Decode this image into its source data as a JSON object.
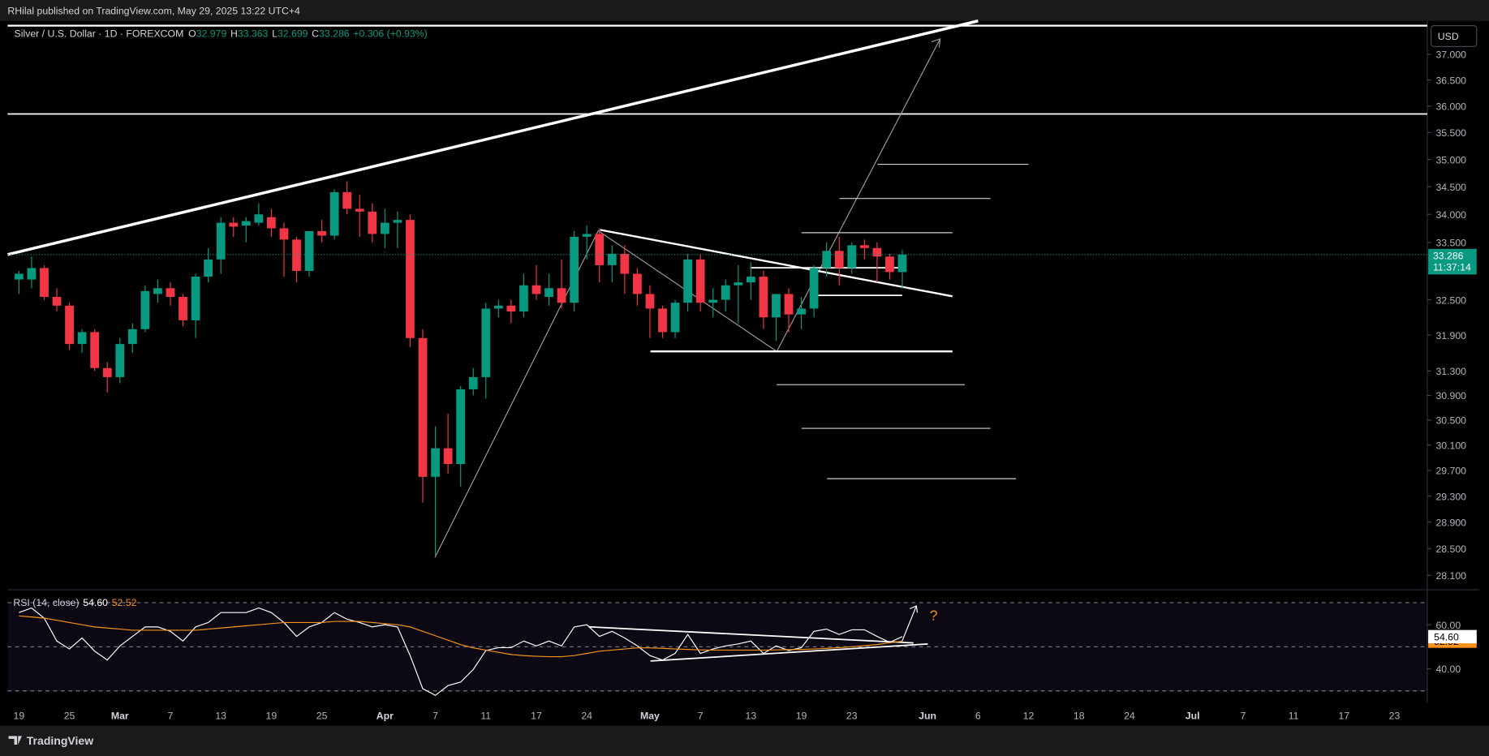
{
  "publisher_line": "RHilal published on TradingView.com, May 29, 2025 13:22 UTC+4",
  "brand": "TradingView",
  "currency": "USD",
  "countdown": "11:37:14",
  "ohlc_letters": [
    "O",
    "H",
    "L",
    "C"
  ],
  "change": "+0.306 (+0.93%)",
  "chart_data": [
    {
      "type": "candlestick",
      "title": "Silver / U.S. Dollar · 1D · FOREXCOM",
      "log": true,
      "ylim": [
        27.9,
        37.6
      ],
      "yticks": [
        {
          "value": 37,
          "label": "37.000"
        },
        {
          "value": 36.5,
          "label": "36.500"
        },
        {
          "value": 36,
          "label": "36.000"
        },
        {
          "value": 35.5,
          "label": "35.500"
        },
        {
          "value": 35,
          "label": "35.000"
        },
        {
          "value": 34.5,
          "label": "34.500"
        },
        {
          "value": 34,
          "label": "34.000"
        },
        {
          "value": 33.5,
          "label": "33.500"
        },
        {
          "value": 32.5,
          "label": "32.500"
        },
        {
          "value": 31.9,
          "label": "31.900"
        },
        {
          "value": 31.3,
          "label": "31.300"
        },
        {
          "value": 30.9,
          "label": "30.900"
        },
        {
          "value": 30.5,
          "label": "30.500"
        },
        {
          "value": 30.1,
          "label": "30.100"
        },
        {
          "value": 29.7,
          "label": "29.700"
        },
        {
          "value": 29.3,
          "label": "29.300"
        },
        {
          "value": 28.9,
          "label": "28.900"
        },
        {
          "value": 28.5,
          "label": "28.500"
        },
        {
          "value": 28.1,
          "label": "28.100"
        }
      ],
      "xlim": [
        -0.9,
        111.6
      ],
      "xticks": [
        {
          "value": 0,
          "label": "19"
        },
        {
          "value": 4,
          "label": "25"
        },
        {
          "value": 8,
          "label": "Mar"
        },
        {
          "value": 12,
          "label": "7"
        },
        {
          "value": 16,
          "label": "13"
        },
        {
          "value": 20,
          "label": "19"
        },
        {
          "value": 24,
          "label": "25"
        },
        {
          "value": 29,
          "label": "Apr"
        },
        {
          "value": 33,
          "label": "7"
        },
        {
          "value": 37,
          "label": "11"
        },
        {
          "value": 41,
          "label": "17"
        },
        {
          "value": 45,
          "label": "24"
        },
        {
          "value": 50,
          "label": "May"
        },
        {
          "value": 54,
          "label": "7"
        },
        {
          "value": 58,
          "label": "13"
        },
        {
          "value": 62,
          "label": "19"
        },
        {
          "value": 66,
          "label": "23"
        },
        {
          "value": 72,
          "label": "Jun"
        },
        {
          "value": 76,
          "label": "6"
        },
        {
          "value": 80,
          "label": "12"
        },
        {
          "value": 84,
          "label": "18"
        },
        {
          "value": 88,
          "label": "24"
        },
        {
          "value": 93,
          "label": "Jul"
        },
        {
          "value": 97,
          "label": "7"
        },
        {
          "value": 101,
          "label": "11"
        },
        {
          "value": 105,
          "label": "17"
        },
        {
          "value": 109,
          "label": "23"
        }
      ],
      "up_color": "#089981",
      "down_color": "#f23645",
      "series": [
        {
          "name": "Silver / U.S. Dollar · 1D · FOREXCOM",
          "open": [
            32.85,
            32.85,
            33.05,
            32.55,
            32.4,
            31.75,
            31.95,
            31.35,
            31.2,
            31.75,
            32.0,
            32.6,
            32.7,
            32.55,
            32.15,
            32.9,
            33.2,
            33.85,
            33.8,
            33.85,
            33.95,
            33.75,
            33.55,
            33.0,
            33.7,
            33.62,
            34.4,
            34.1,
            34.05,
            33.65,
            33.85,
            33.9,
            31.85,
            29.6,
            30.05,
            29.8,
            31.0,
            31.2,
            32.35,
            32.4,
            32.3,
            32.75,
            32.55,
            32.7,
            32.45,
            33.6,
            33.65,
            33.1,
            33.3,
            32.95,
            32.6,
            32.35,
            31.95,
            32.45,
            33.2,
            32.45,
            32.5,
            32.75,
            32.8,
            32.9,
            32.2,
            32.6,
            32.25,
            32.35,
            33.05,
            33.35,
            33.05,
            33.45,
            33.4,
            33.25,
            32.979
          ],
          "high": [
            33.0,
            33.25,
            33.1,
            32.7,
            32.45,
            32.0,
            32.0,
            31.45,
            31.85,
            32.1,
            32.75,
            32.85,
            32.8,
            32.6,
            32.95,
            33.4,
            33.95,
            33.95,
            33.95,
            34.2,
            34.1,
            33.85,
            33.6,
            33.7,
            33.9,
            34.45,
            34.6,
            34.35,
            34.2,
            34.1,
            34.05,
            34.0,
            32.0,
            30.4,
            30.6,
            31.05,
            31.35,
            32.45,
            32.5,
            32.5,
            32.95,
            33.1,
            32.95,
            33.2,
            33.7,
            33.8,
            33.75,
            33.45,
            33.45,
            33.05,
            32.75,
            32.4,
            32.5,
            33.3,
            33.3,
            32.7,
            32.85,
            33.1,
            33.15,
            33.0,
            32.6,
            32.7,
            32.55,
            33.1,
            33.5,
            33.6,
            33.5,
            33.55,
            33.5,
            33.3,
            33.363
          ],
          "low": [
            32.6,
            32.7,
            32.5,
            32.3,
            31.65,
            31.6,
            31.3,
            30.95,
            31.1,
            31.6,
            31.95,
            32.45,
            32.4,
            32.05,
            31.85,
            32.8,
            32.95,
            33.6,
            33.5,
            33.8,
            33.6,
            32.9,
            32.8,
            32.9,
            33.5,
            33.55,
            34.0,
            33.6,
            33.5,
            33.4,
            33.4,
            31.7,
            29.2,
            28.4,
            29.65,
            29.45,
            30.9,
            30.85,
            32.2,
            32.1,
            32.2,
            32.5,
            32.4,
            32.35,
            32.3,
            33.2,
            32.8,
            32.8,
            32.6,
            32.4,
            31.85,
            31.85,
            31.85,
            32.3,
            32.3,
            32.2,
            32.3,
            32.1,
            32.5,
            32.0,
            31.8,
            31.95,
            32.0,
            32.2,
            32.9,
            32.75,
            32.95,
            33.2,
            32.8,
            32.85,
            32.699
          ],
          "close": [
            32.95,
            33.05,
            32.55,
            32.4,
            31.75,
            31.95,
            31.35,
            31.2,
            31.75,
            32.0,
            32.65,
            32.7,
            32.55,
            32.15,
            32.9,
            33.2,
            33.85,
            33.78,
            33.88,
            34.0,
            33.75,
            33.55,
            33.0,
            33.7,
            33.62,
            34.4,
            34.1,
            34.05,
            33.65,
            33.85,
            33.9,
            31.85,
            29.6,
            30.05,
            29.8,
            31.0,
            31.2,
            32.35,
            32.4,
            32.3,
            32.75,
            32.6,
            32.7,
            32.45,
            33.6,
            33.65,
            33.1,
            33.3,
            32.95,
            32.6,
            32.35,
            31.95,
            32.45,
            33.2,
            32.45,
            32.5,
            32.75,
            32.8,
            32.9,
            32.2,
            32.6,
            32.25,
            32.35,
            33.05,
            33.35,
            33.05,
            33.45,
            33.4,
            33.25,
            32.98,
            33.286
          ]
        }
      ]
    },
    {
      "type": "line",
      "title": "RSI (14, close)",
      "annotation": "?",
      "ylim": [
        24.6,
        75.4
      ],
      "yticks": [
        {
          "value": 60,
          "label": "60.00"
        },
        {
          "value": 40,
          "label": "40.00"
        }
      ],
      "levels": [
        70,
        50,
        30
      ],
      "series": [
        {
          "color": "#ffffff",
          "last_label": "54.60",
          "values": [
            65.5,
            67.6,
            63,
            52.6,
            49,
            54,
            48,
            44,
            50.4,
            54.7,
            59,
            59,
            57,
            52.6,
            59,
            61,
            65.5,
            65.5,
            65.5,
            67.6,
            65.5,
            61,
            54.7,
            59,
            61,
            65.5,
            62.5,
            61,
            59,
            60,
            59,
            46,
            31,
            28,
            32.4,
            34,
            39.7,
            48.3,
            49.6,
            49.6,
            52.6,
            50.4,
            52.6,
            50.4,
            59,
            60,
            54.7,
            57,
            54,
            50.4,
            46,
            44,
            47,
            55.6,
            47,
            49,
            50.4,
            51.3,
            52.6,
            47,
            50.4,
            48.3,
            49.6,
            57,
            58,
            55.6,
            57.7,
            57.7,
            54.7,
            52,
            54.6
          ]
        },
        {
          "color": "#f7931a",
          "last_label": "52.52",
          "values": [
            64,
            63.5,
            63,
            62,
            61,
            60,
            59,
            58.5,
            58,
            57.5,
            57.5,
            57.5,
            57.5,
            57.5,
            57.5,
            58,
            58.5,
            59,
            59.5,
            60,
            60.5,
            61,
            61,
            61,
            61,
            61.5,
            61.5,
            61.5,
            61,
            60.5,
            60,
            59,
            57,
            55,
            53,
            51,
            49.5,
            48.5,
            47.5,
            46.5,
            46,
            45.7,
            45.5,
            45.5,
            46,
            47,
            48,
            48.5,
            49,
            49.5,
            49.5,
            49.3,
            49,
            48.8,
            48.6,
            48.5,
            48.5,
            48.5,
            48.5,
            48.5,
            48.6,
            48.7,
            48.8,
            49,
            49.3,
            49.6,
            50,
            50.5,
            51,
            51.8,
            52.52
          ]
        }
      ]
    }
  ]
}
